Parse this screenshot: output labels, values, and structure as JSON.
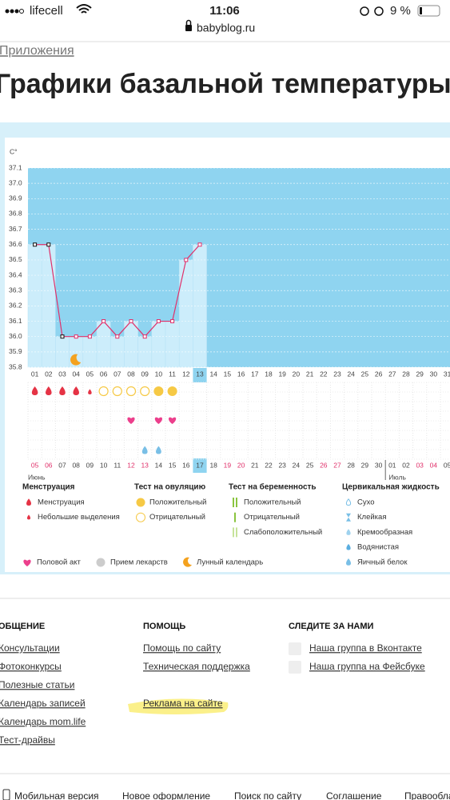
{
  "status_bar": {
    "carrier": "lifecell",
    "time": "11:06",
    "battery": "9 %"
  },
  "address": "babyblog.ru",
  "breadcrumb": "Приложения",
  "title": "Графики базальной температуры",
  "chart_data": {
    "type": "line",
    "y_label": "C°",
    "categories": [
      "01",
      "02",
      "03",
      "04",
      "05",
      "06",
      "07",
      "08",
      "09",
      "10",
      "11",
      "12",
      "13",
      "14",
      "15",
      "16",
      "17",
      "18",
      "19",
      "20",
      "21",
      "22",
      "23",
      "24",
      "25",
      "26",
      "27",
      "28",
      "29",
      "30",
      "31"
    ],
    "values": [
      36.6,
      36.6,
      36.0,
      36.0,
      36.0,
      36.1,
      36.0,
      36.1,
      36.0,
      36.1,
      36.1,
      36.5,
      36.6,
      null,
      null,
      null,
      null,
      null,
      null,
      null,
      null,
      null,
      null,
      null,
      null,
      null,
      null,
      null,
      null,
      null,
      null
    ],
    "ylim": [
      35.8,
      37.1
    ],
    "yticks": [
      35.8,
      35.9,
      {
        "value": 36,
        "label": "36.0"
      },
      36.1,
      36.2,
      36.3,
      36.4,
      36.5,
      36.6,
      36.7,
      36.8,
      36.9,
      {
        "value": 37,
        "label": "37.0"
      },
      37.1
    ],
    "color": "#e0306a",
    "grid": true,
    "today_index": 12,
    "dates": [
      "05",
      "06",
      "07",
      "08",
      "09",
      "10",
      "11",
      "12",
      "13",
      "14",
      "15",
      "16",
      "17",
      "18",
      "19",
      "20",
      "21",
      "22",
      "23",
      "24",
      "25",
      "26",
      "27",
      "28",
      "29",
      "30",
      "01",
      "02",
      "03",
      "04",
      "05"
    ],
    "weekend": [
      true,
      true,
      false,
      false,
      false,
      false,
      false,
      true,
      true,
      false,
      false,
      false,
      false,
      false,
      true,
      true,
      false,
      false,
      false,
      false,
      false,
      true,
      true,
      false,
      false,
      false,
      false,
      false,
      true,
      true,
      false
    ],
    "months": [
      "Июнь",
      "Июль"
    ]
  },
  "legend": {
    "groups": [
      {
        "title": "Менструация",
        "items": [
          "Менструация",
          "Небольшие выделения"
        ]
      },
      {
        "title": "Тест на овуляцию",
        "items": [
          "Положительный",
          "Отрицательный"
        ]
      },
      {
        "title": "Тест на беременность",
        "items": [
          "Положительный",
          "Отрицательный",
          "Слабоположительный"
        ]
      },
      {
        "title": "Цервикальная жидкость",
        "items": [
          "Сухо",
          "Клейкая",
          "Кремообразная",
          "Водянистая",
          "Яичный белок"
        ]
      }
    ],
    "extra": [
      "Половой акт",
      "Прием лекарств",
      "Лунный календарь"
    ]
  },
  "footer": {
    "columns": [
      {
        "title": "ОБЩЕНИЕ",
        "links": [
          "Консультации",
          "Фотоконкурсы",
          "Полезные статьи",
          "Календарь записей",
          "Календарь mom.life",
          "Тест-драйвы"
        ]
      },
      {
        "title": "ПОМОЩЬ",
        "links": [
          "Помощь по сайту",
          "Техническая поддержка",
          "Реклама на сайте"
        ]
      },
      {
        "title": "СЛЕДИТЕ ЗА НАМИ",
        "links": [
          "Наша группа в Вконтакте",
          "Наша группа на Фейсбуке"
        ]
      }
    ],
    "bottom": [
      "Мобильная версия",
      "Новое оформление",
      "Поиск по сайту",
      "Соглашение",
      "Правообладателям"
    ]
  }
}
